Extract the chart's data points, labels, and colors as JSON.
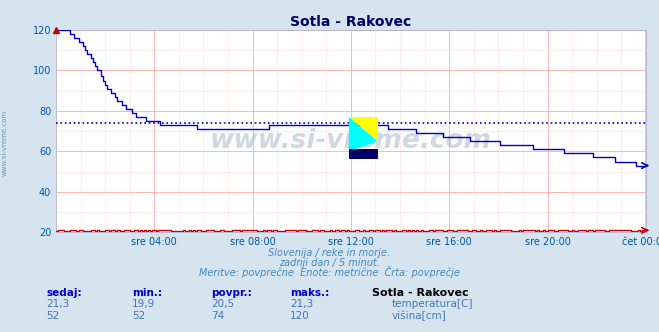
{
  "title": "Sotla - Rakovec",
  "bg_color": "#d6e4f0",
  "plot_bg_color": "#ffffff",
  "grid_color_major": "#ffaaaa",
  "grid_color_minor": "#ffdddd",
  "watermark": "www.si-vreme.com",
  "subtitle_lines": [
    "Slovenija / reke in morje.",
    "zadnji dan / 5 minut.",
    "Meritve: povprečne  Enote: metrične  Črta: povprečje"
  ],
  "xtick_labels": [
    "sre 04:00",
    "sre 08:00",
    "sre 12:00",
    "sre 16:00",
    "sre 20:00",
    "čet 00:00"
  ],
  "ytick_values": [
    20,
    40,
    60,
    80,
    100,
    120
  ],
  "ylim": [
    20,
    120
  ],
  "xlim_max": 288,
  "avg_line_color": "#0000cc",
  "avg_line_value": 74,
  "temp_color": "#cc0000",
  "height_color": "#0000cc",
  "legend_title": "Sotla - Rakovec",
  "legend_items": [
    {
      "label": "temperatura[C]",
      "color": "#dd0000"
    },
    {
      "label": "višina[cm]",
      "color": "#0000cc"
    }
  ],
  "table_headers": [
    "sedaj:",
    "min.:",
    "povpr.:",
    "maks.:"
  ],
  "table_row1": [
    "21,3",
    "19,9",
    "20,5",
    "21,3"
  ],
  "table_row2": [
    "52",
    "52",
    "74",
    "120"
  ],
  "ylabel_color": "#0055aa",
  "xlabel_color": "#0055aa",
  "subtitle_color": "#4488bb",
  "table_header_color": "#0000cc",
  "table_val_color": "#4477bb"
}
